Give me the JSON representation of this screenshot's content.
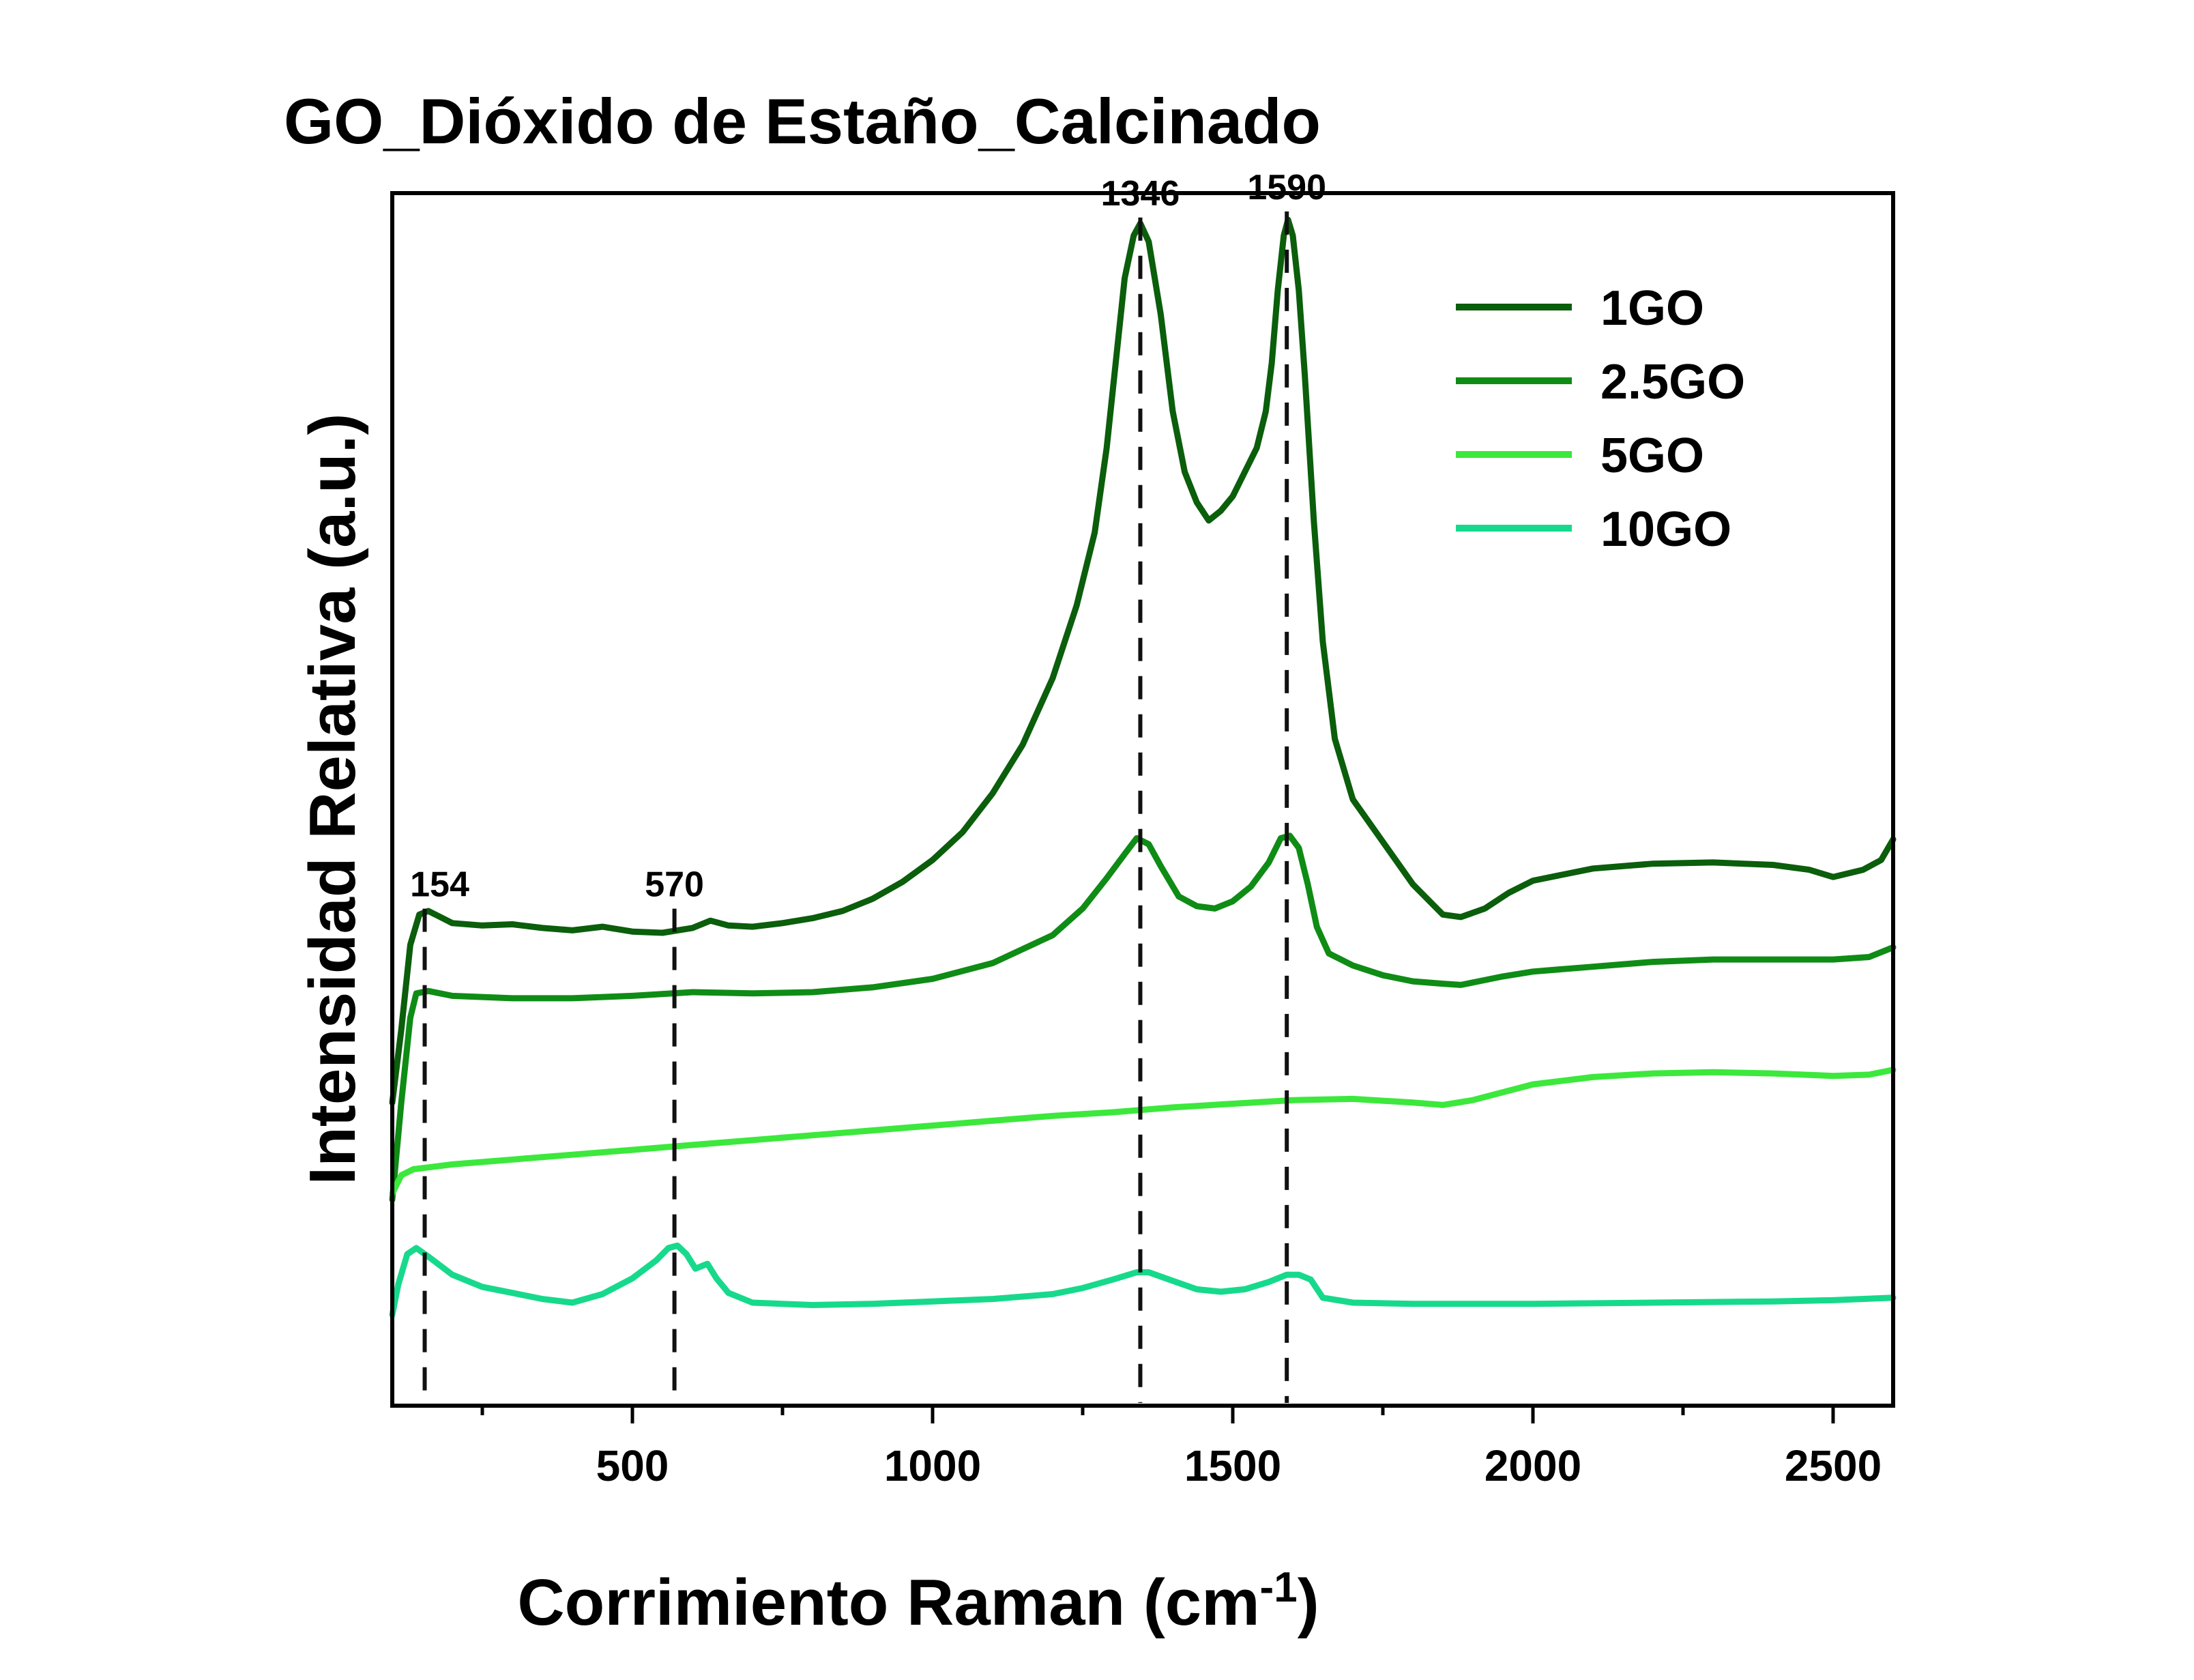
{
  "chart_data": {
    "type": "line",
    "title": "GO_Dióxido de Estaño_Calcinado",
    "xlabel_main": "Corrimiento Raman (cm",
    "xlabel_sup": "-1",
    "xlabel_close": ")",
    "ylabel": "Intensidad Relativa (a.u.)",
    "xlim": [
      100,
      2600
    ],
    "ylim": [
      0,
      100
    ],
    "x_ticks": [
      {
        "value": 500,
        "label": "500"
      },
      {
        "value": 1000,
        "label": "1000"
      },
      {
        "value": 1500,
        "label": "1500"
      },
      {
        "value": 2000,
        "label": "2000"
      },
      {
        "value": 2500,
        "label": "2500"
      }
    ],
    "minor_ticks": [
      250,
      750,
      1250,
      1750,
      2250
    ],
    "grid": false,
    "legend_position": "top-right",
    "peak_markers": [
      {
        "x": 154,
        "label": "154",
        "label_y": 42
      },
      {
        "x": 570,
        "label": "570",
        "label_y": 42
      },
      {
        "x": 1346,
        "label": "1346",
        "label_y": 99
      },
      {
        "x": 1590,
        "label": "1590",
        "label_y": 99.5
      }
    ],
    "series": [
      {
        "name": "1GO",
        "color": "#0b5e0b",
        "points": [
          [
            100,
            25
          ],
          [
            115,
            31
          ],
          [
            130,
            38
          ],
          [
            145,
            40.5
          ],
          [
            160,
            40.8
          ],
          [
            180,
            40.3
          ],
          [
            200,
            39.8
          ],
          [
            250,
            39.6
          ],
          [
            300,
            39.7
          ],
          [
            350,
            39.4
          ],
          [
            400,
            39.2
          ],
          [
            450,
            39.5
          ],
          [
            500,
            39.1
          ],
          [
            550,
            39
          ],
          [
            600,
            39.4
          ],
          [
            630,
            40
          ],
          [
            660,
            39.6
          ],
          [
            700,
            39.5
          ],
          [
            750,
            39.8
          ],
          [
            800,
            40.2
          ],
          [
            850,
            40.8
          ],
          [
            900,
            41.8
          ],
          [
            950,
            43.2
          ],
          [
            1000,
            45
          ],
          [
            1050,
            47.3
          ],
          [
            1100,
            50.5
          ],
          [
            1150,
            54.5
          ],
          [
            1200,
            60
          ],
          [
            1240,
            66
          ],
          [
            1270,
            72
          ],
          [
            1290,
            79
          ],
          [
            1305,
            86
          ],
          [
            1320,
            93
          ],
          [
            1335,
            96.5
          ],
          [
            1346,
            97.5
          ],
          [
            1360,
            96
          ],
          [
            1380,
            90
          ],
          [
            1400,
            82
          ],
          [
            1420,
            77
          ],
          [
            1440,
            74.5
          ],
          [
            1460,
            73
          ],
          [
            1480,
            73.8
          ],
          [
            1500,
            75
          ],
          [
            1520,
            77
          ],
          [
            1540,
            79
          ],
          [
            1555,
            82
          ],
          [
            1565,
            86
          ],
          [
            1575,
            92
          ],
          [
            1585,
            96.5
          ],
          [
            1592,
            97.8
          ],
          [
            1600,
            96.5
          ],
          [
            1610,
            92
          ],
          [
            1620,
            85
          ],
          [
            1635,
            73
          ],
          [
            1650,
            63
          ],
          [
            1670,
            55
          ],
          [
            1700,
            50
          ],
          [
            1750,
            46.5
          ],
          [
            1800,
            43
          ],
          [
            1850,
            40.5
          ],
          [
            1880,
            40.3
          ],
          [
            1920,
            41
          ],
          [
            1960,
            42.3
          ],
          [
            2000,
            43.3
          ],
          [
            2100,
            44.3
          ],
          [
            2200,
            44.7
          ],
          [
            2300,
            44.8
          ],
          [
            2400,
            44.6
          ],
          [
            2460,
            44.2
          ],
          [
            2500,
            43.6
          ],
          [
            2550,
            44.2
          ],
          [
            2580,
            45
          ],
          [
            2600,
            46.7
          ]
        ]
      },
      {
        "name": "2.5GO",
        "color": "#0f8c15",
        "points": [
          [
            100,
            17
          ],
          [
            115,
            25
          ],
          [
            130,
            32
          ],
          [
            140,
            34
          ],
          [
            160,
            34.2
          ],
          [
            200,
            33.8
          ],
          [
            300,
            33.6
          ],
          [
            400,
            33.6
          ],
          [
            500,
            33.8
          ],
          [
            600,
            34.1
          ],
          [
            700,
            34
          ],
          [
            800,
            34.1
          ],
          [
            900,
            34.5
          ],
          [
            1000,
            35.2
          ],
          [
            1100,
            36.5
          ],
          [
            1200,
            38.8
          ],
          [
            1250,
            41
          ],
          [
            1290,
            43.5
          ],
          [
            1320,
            45.5
          ],
          [
            1340,
            46.8
          ],
          [
            1360,
            46.3
          ],
          [
            1380,
            44.5
          ],
          [
            1410,
            42
          ],
          [
            1440,
            41.2
          ],
          [
            1470,
            41
          ],
          [
            1500,
            41.6
          ],
          [
            1530,
            42.8
          ],
          [
            1560,
            44.8
          ],
          [
            1580,
            46.8
          ],
          [
            1595,
            47
          ],
          [
            1610,
            46
          ],
          [
            1625,
            43
          ],
          [
            1640,
            39.5
          ],
          [
            1660,
            37.3
          ],
          [
            1700,
            36.3
          ],
          [
            1750,
            35.5
          ],
          [
            1800,
            35
          ],
          [
            1850,
            34.8
          ],
          [
            1880,
            34.7
          ],
          [
            1950,
            35.4
          ],
          [
            2000,
            35.8
          ],
          [
            2100,
            36.2
          ],
          [
            2200,
            36.6
          ],
          [
            2300,
            36.8
          ],
          [
            2400,
            36.8
          ],
          [
            2500,
            36.8
          ],
          [
            2560,
            37
          ],
          [
            2600,
            37.8
          ]
        ]
      },
      {
        "name": "5GO",
        "color": "#3ce83c",
        "points": [
          [
            100,
            17.5
          ],
          [
            115,
            19
          ],
          [
            135,
            19.5
          ],
          [
            200,
            19.9
          ],
          [
            300,
            20.3
          ],
          [
            400,
            20.7
          ],
          [
            500,
            21.1
          ],
          [
            600,
            21.5
          ],
          [
            700,
            21.9
          ],
          [
            800,
            22.3
          ],
          [
            900,
            22.7
          ],
          [
            1000,
            23.1
          ],
          [
            1100,
            23.5
          ],
          [
            1200,
            23.9
          ],
          [
            1300,
            24.2
          ],
          [
            1400,
            24.6
          ],
          [
            1500,
            24.9
          ],
          [
            1600,
            25.2
          ],
          [
            1700,
            25.3
          ],
          [
            1800,
            25
          ],
          [
            1850,
            24.8
          ],
          [
            1900,
            25.2
          ],
          [
            2000,
            26.5
          ],
          [
            2100,
            27.1
          ],
          [
            2200,
            27.4
          ],
          [
            2300,
            27.5
          ],
          [
            2400,
            27.4
          ],
          [
            2500,
            27.2
          ],
          [
            2560,
            27.3
          ],
          [
            2600,
            27.7
          ]
        ]
      },
      {
        "name": "10GO",
        "color": "#17d98c",
        "points": [
          [
            100,
            7.5
          ],
          [
            110,
            10
          ],
          [
            125,
            12.5
          ],
          [
            140,
            13
          ],
          [
            160,
            12.3
          ],
          [
            200,
            10.8
          ],
          [
            250,
            9.8
          ],
          [
            300,
            9.3
          ],
          [
            350,
            8.8
          ],
          [
            400,
            8.5
          ],
          [
            450,
            9.2
          ],
          [
            500,
            10.5
          ],
          [
            540,
            12
          ],
          [
            560,
            13
          ],
          [
            575,
            13.2
          ],
          [
            590,
            12.5
          ],
          [
            605,
            11.3
          ],
          [
            625,
            11.7
          ],
          [
            640,
            10.5
          ],
          [
            660,
            9.3
          ],
          [
            700,
            8.5
          ],
          [
            800,
            8.3
          ],
          [
            900,
            8.4
          ],
          [
            1000,
            8.6
          ],
          [
            1100,
            8.8
          ],
          [
            1200,
            9.2
          ],
          [
            1250,
            9.7
          ],
          [
            1300,
            10.4
          ],
          [
            1340,
            11
          ],
          [
            1360,
            11
          ],
          [
            1400,
            10.3
          ],
          [
            1440,
            9.6
          ],
          [
            1480,
            9.4
          ],
          [
            1520,
            9.6
          ],
          [
            1560,
            10.2
          ],
          [
            1590,
            10.8
          ],
          [
            1610,
            10.8
          ],
          [
            1630,
            10.4
          ],
          [
            1650,
            8.9
          ],
          [
            1700,
            8.5
          ],
          [
            1800,
            8.4
          ],
          [
            2000,
            8.4
          ],
          [
            2200,
            8.5
          ],
          [
            2400,
            8.6
          ],
          [
            2500,
            8.7
          ],
          [
            2600,
            8.9
          ]
        ]
      }
    ]
  }
}
